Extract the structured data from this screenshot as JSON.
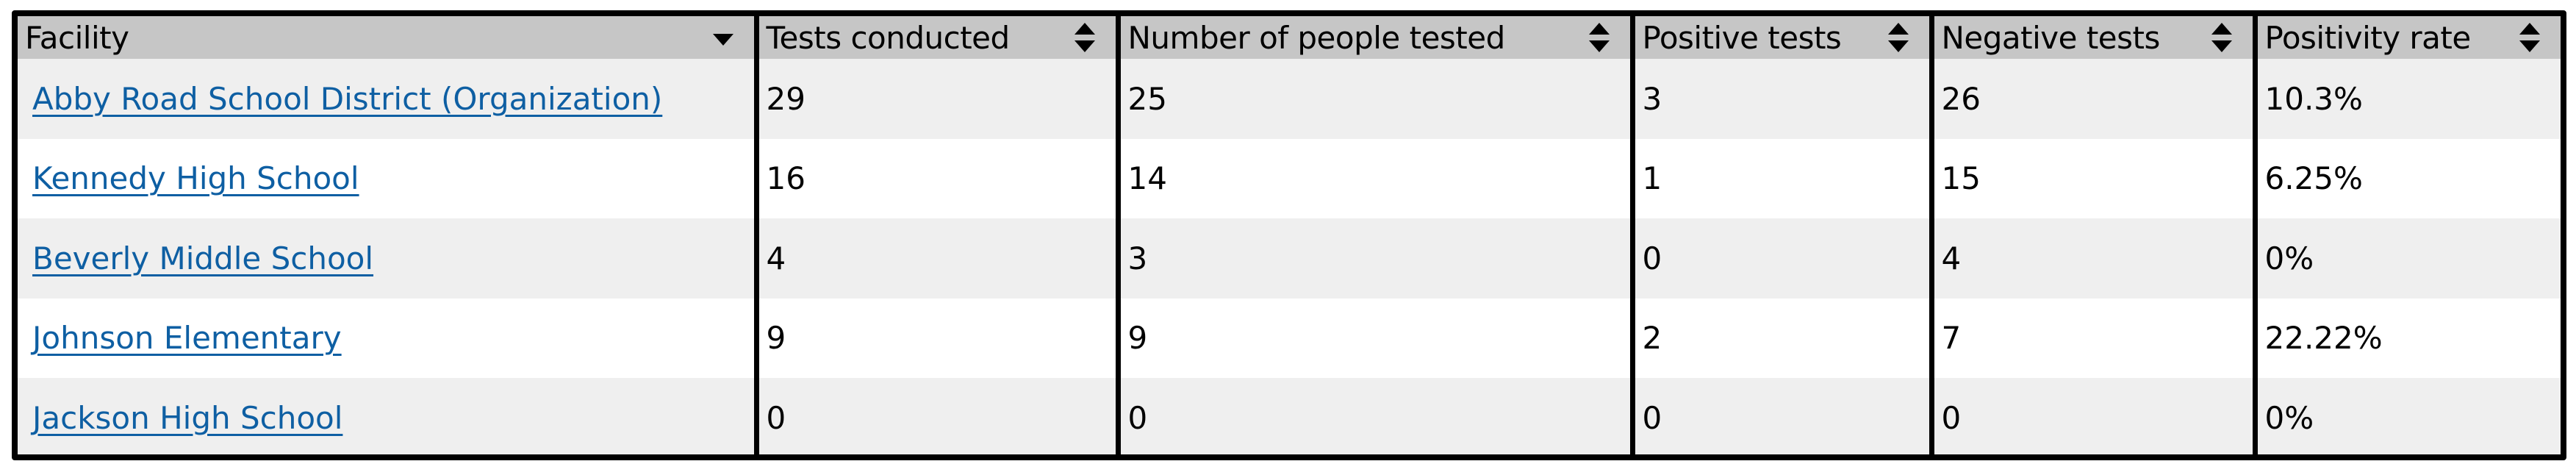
{
  "table": {
    "columns": [
      {
        "label": "Facility",
        "sort_icon": "caret-down-icon"
      },
      {
        "label": "Tests conducted",
        "sort_icon": "sort-icon"
      },
      {
        "label": "Number of people tested",
        "sort_icon": "sort-icon"
      },
      {
        "label": "Positive tests",
        "sort_icon": "sort-icon"
      },
      {
        "label": "Negative tests",
        "sort_icon": "sort-icon"
      },
      {
        "label": "Positivity rate",
        "sort_icon": "sort-icon"
      }
    ],
    "rows": [
      {
        "facility": "Abby Road School District (Organization)",
        "tests": "29",
        "people": "25",
        "positive": "3",
        "negative": "26",
        "rate": "10.3%"
      },
      {
        "facility": "Kennedy High School",
        "tests": "16",
        "people": "14",
        "positive": "1",
        "negative": "15",
        "rate": "6.25%"
      },
      {
        "facility": "Beverly Middle School",
        "tests": "4",
        "people": "3",
        "positive": "0",
        "negative": "4",
        "rate": "0%"
      },
      {
        "facility": "Johnson Elementary",
        "tests": "9",
        "people": "9",
        "positive": "2",
        "negative": "7",
        "rate": "22.22%"
      },
      {
        "facility": "Jackson High School",
        "tests": "0",
        "people": "0",
        "positive": "0",
        "negative": "0",
        "rate": "0%"
      }
    ]
  },
  "colors": {
    "header_bg": "#c6c6c6",
    "row_alt_bg": "#efefef",
    "link": "#0e5fa3",
    "border": "#000000"
  }
}
